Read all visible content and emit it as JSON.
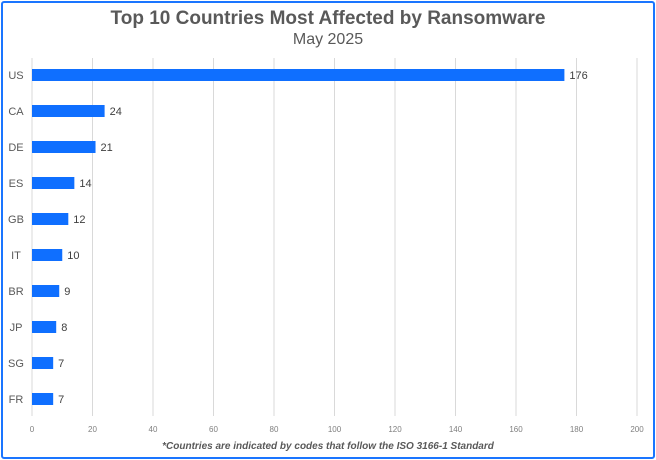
{
  "chart_data": {
    "type": "bar",
    "orientation": "horizontal",
    "title": "Top 10 Countries Most Affected by Ransomware",
    "subtitle": "May 2025",
    "categories": [
      "US",
      "CA",
      "DE",
      "ES",
      "GB",
      "IT",
      "BR",
      "JP",
      "SG",
      "FR"
    ],
    "values": [
      176,
      24,
      21,
      14,
      12,
      10,
      9,
      8,
      7,
      7
    ],
    "xlim": [
      0,
      200
    ],
    "xticks": [
      0,
      20,
      40,
      60,
      80,
      100,
      120,
      140,
      160,
      180,
      200
    ],
    "grid": true,
    "footnote": "*Countries are indicated by codes that follow the ISO 3166-1 Standard",
    "bar_color": "#0f6fff",
    "border_color": "#1a75ff"
  }
}
